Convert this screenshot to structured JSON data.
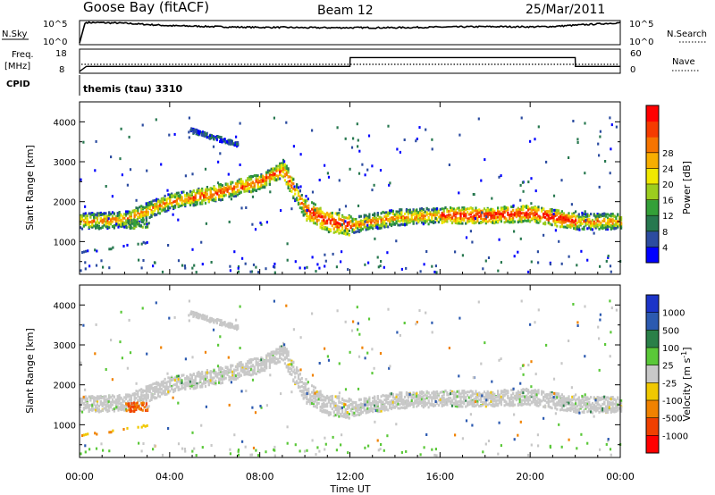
{
  "header": {
    "station": "Goose Bay (fitACF)",
    "beam": "Beam 12",
    "date": "25/Mar/2011"
  },
  "strip_labels": {
    "nsky": "N.Sky",
    "nsky_ticks": [
      "10^5",
      "10^0"
    ],
    "nsearch": "N.Search",
    "freq": "Freq.",
    "freq_unit": "[MHz]",
    "freq_ticks": [
      "18",
      "8"
    ],
    "nave": "Nave",
    "nave_ticks": [
      "60",
      "0"
    ],
    "cpid": "CPID",
    "cpid_value": "themis (tau) 3310"
  },
  "chart_data": [
    {
      "type": "line",
      "panel": "noise",
      "ylabel_left": "N.Sky",
      "ylabel_right": "N.Search",
      "yticks": [
        "10^5",
        "10^0"
      ],
      "x": [
        0,
        0.25,
        1,
        2,
        3,
        4,
        5,
        6,
        7,
        8,
        9,
        10,
        11,
        12,
        13,
        14,
        15,
        16,
        17,
        18,
        19,
        20,
        21,
        22,
        23,
        24
      ],
      "series": [
        {
          "name": "N.Sky",
          "values": [
            1.0,
            90000.0,
            80000.0,
            60000.0,
            30000.0,
            15000.0,
            12000.0,
            9000.0,
            7000.0,
            6000.0,
            6000.0,
            5000.0,
            5000.0,
            5000.0,
            5000.0,
            5000.0,
            6000.0,
            7000.0,
            8000.0,
            9000.0,
            9000.0,
            8000.0,
            10000.0,
            20000.0,
            40000.0,
            80000.0
          ]
        }
      ]
    },
    {
      "type": "line",
      "panel": "frequency",
      "ylabel_left": "Freq. [MHz]",
      "ylabel_right": "Nave",
      "yticks_left": [
        "18",
        "8"
      ],
      "yticks_right": [
        "60",
        "0"
      ],
      "x": [
        0,
        0.3,
        12,
        12.01,
        22,
        22.01,
        24
      ],
      "series": [
        {
          "name": "Freq.",
          "values": [
            8,
            10.5,
            10.5,
            14.8,
            14.8,
            10.5,
            10.5
          ]
        },
        {
          "name": "Nave",
          "values": [
            10,
            10,
            10,
            10,
            10,
            10,
            10
          ]
        }
      ]
    },
    {
      "type": "heatmap",
      "panel": "power",
      "ylabel": "Slant Range [km]",
      "yticks": [
        1000,
        2000,
        3000,
        4000
      ],
      "ylim": [
        180,
        4500
      ],
      "xlim": [
        0,
        24
      ],
      "colorbar": {
        "label": "Power [dB]",
        "ticks": [
          4,
          8,
          12,
          16,
          20,
          24,
          28
        ],
        "colors": [
          "#0000ff",
          "#2c4ca0",
          "#27784f",
          "#34a038",
          "#9ccd1e",
          "#f0e800",
          "#f7ae00",
          "#f67400",
          "#f53b00",
          "#ff0000"
        ]
      },
      "features": [
        {
          "label": "main band",
          "x": [
            0,
            2,
            4,
            6,
            8,
            9,
            10,
            11,
            12,
            14,
            16,
            18,
            20,
            22,
            24
          ],
          "range": [
            1500,
            1550,
            2000,
            2200,
            2500,
            2800,
            1800,
            1500,
            1400,
            1600,
            1650,
            1650,
            1700,
            1500,
            1500
          ]
        },
        {
          "label": "low echoes",
          "x": [
            0,
            3
          ],
          "range": [
            700,
            1000
          ]
        },
        {
          "label": "high echoes",
          "x": [
            4.8,
            7
          ],
          "range": [
            3400,
            3800
          ]
        }
      ]
    },
    {
      "type": "heatmap",
      "panel": "velocity",
      "ylabel": "Slant Range [km]",
      "yticks": [
        1000,
        2000,
        3000,
        4000
      ],
      "ylim": [
        180,
        4500
      ],
      "xlim": [
        0,
        24
      ],
      "colorbar": {
        "label": "Velocity [m s^-1]",
        "ticks": [
          1000,
          500,
          100,
          25,
          -25,
          -100,
          -500,
          -1000
        ],
        "colors": [
          "#1c34c8",
          "#2c5ab0",
          "#2a8048",
          "#5ac838",
          "#c8c8c8",
          "#f0c800",
          "#f08200",
          "#f04000",
          "#ff0000"
        ]
      }
    }
  ],
  "xaxis": {
    "ticks": [
      "00:00",
      "04:00",
      "08:00",
      "12:00",
      "16:00",
      "20:00",
      "00:00"
    ],
    "label": "Time UT"
  },
  "labels": {
    "slant_range": "Slant Range [km]",
    "power": "Power [dB]",
    "velocity": "Velocity [m s",
    "velocity_sup": "-1",
    "velocity_end": "]"
  }
}
